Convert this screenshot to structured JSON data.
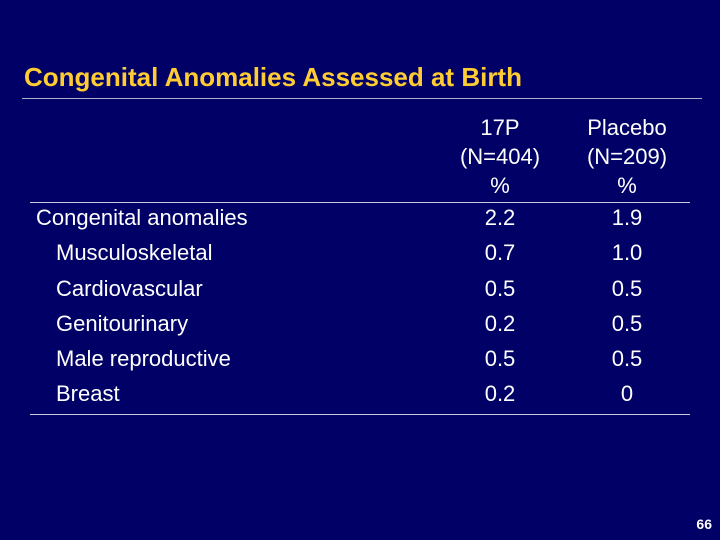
{
  "slide": {
    "title": "Congenital Anomalies Assessed at Birth",
    "page_number": "66"
  },
  "table": {
    "columns": [
      {
        "line1": "17P",
        "line2": "(N=404)",
        "line3": "%"
      },
      {
        "line1": "Placebo",
        "line2": "(N=209)",
        "line3": "%"
      }
    ],
    "rows": [
      {
        "label": "Congenital anomalies",
        "v17p": "2.2",
        "vplacebo": "1.9"
      },
      {
        "label": "Musculoskeletal",
        "v17p": "0.7",
        "vplacebo": "1.0"
      },
      {
        "label": "Cardiovascular",
        "v17p": "0.5",
        "vplacebo": "0.5"
      },
      {
        "label": "Genitourinary",
        "v17p": "0.2",
        "vplacebo": "0.5"
      },
      {
        "label": "Male reproductive",
        "v17p": "0.5",
        "vplacebo": "0.5"
      },
      {
        "label": "Breast",
        "v17p": "0.2",
        "vplacebo": "0"
      }
    ]
  },
  "colors": {
    "background": "#000066",
    "title": "#ffcc33",
    "text": "#ffffff"
  }
}
